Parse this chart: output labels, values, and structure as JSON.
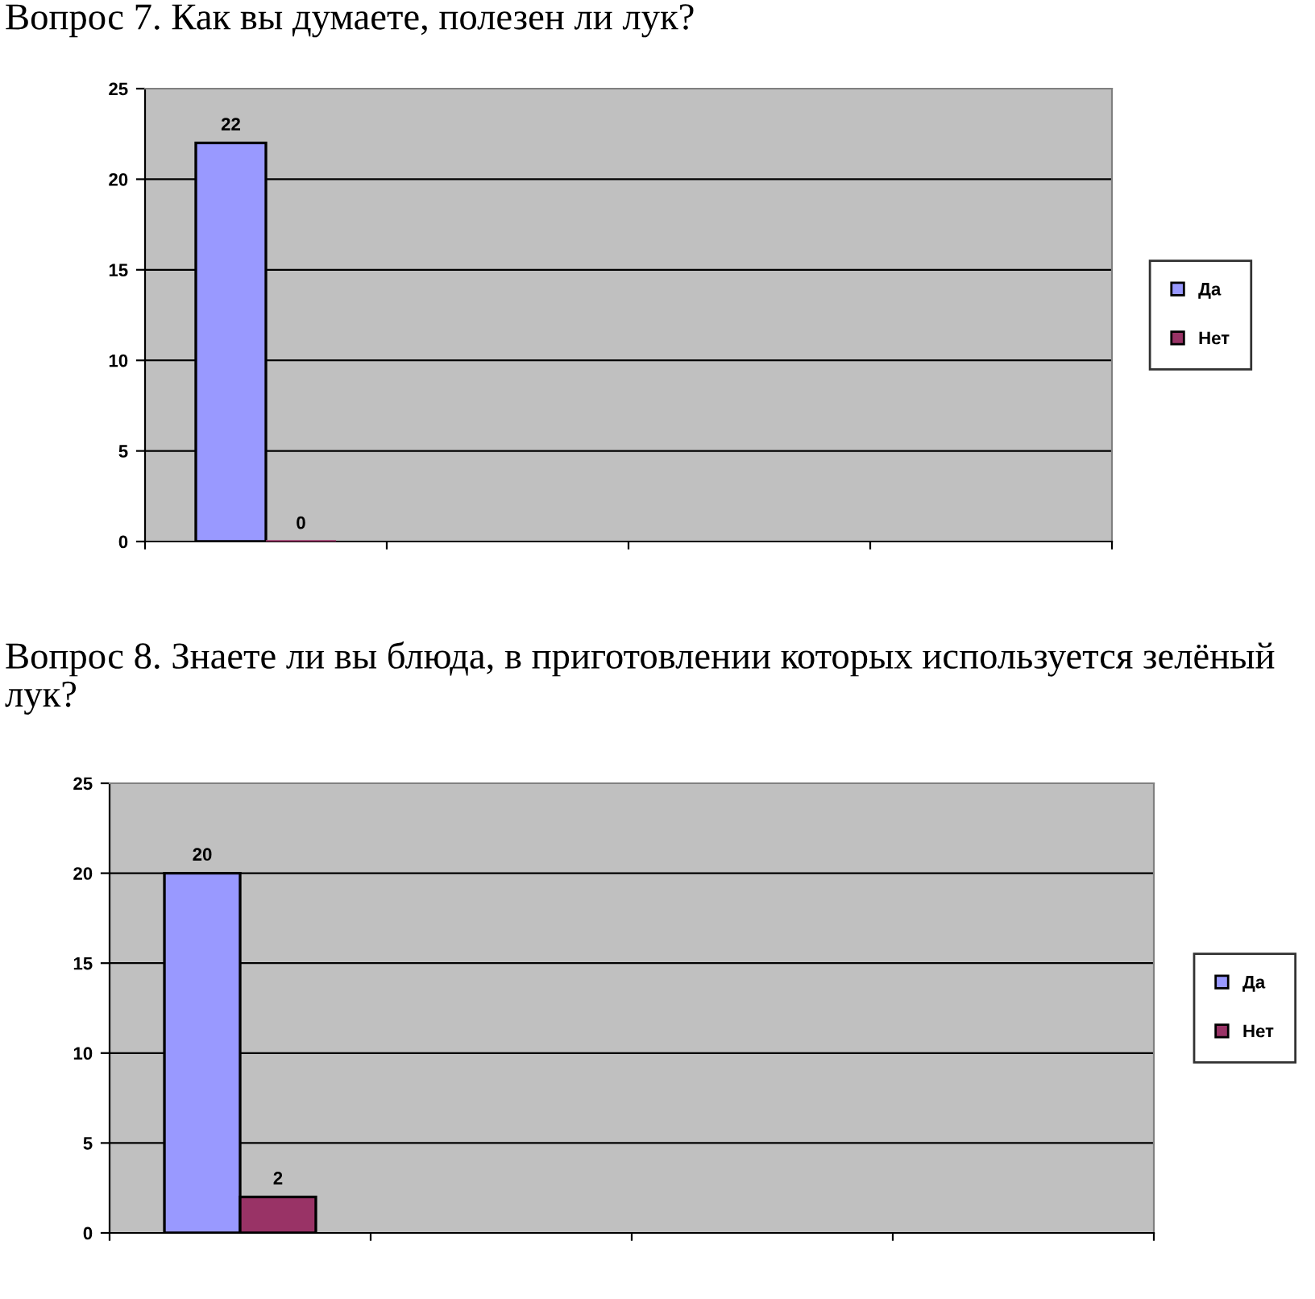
{
  "chart_data": [
    {
      "type": "bar",
      "title": "Вопрос 7. Как вы думаете, полезен ли лук?",
      "categories": [
        null,
        null,
        null,
        null
      ],
      "series": [
        {
          "name": "Да",
          "color": "#9999ff",
          "values": [
            22,
            null,
            null,
            null
          ]
        },
        {
          "name": "Нет",
          "color": "#993366",
          "values": [
            0,
            null,
            null,
            null
          ]
        }
      ],
      "ylim": [
        0,
        25
      ],
      "yticks": [
        0,
        5,
        10,
        15,
        20,
        25
      ],
      "grid": "y",
      "legend": "right",
      "data_labels": true
    },
    {
      "type": "bar",
      "title": "Вопрос 8. Знаете ли вы блюда, в приготовлении которых используется зелёный лук?",
      "categories": [
        null,
        null,
        null,
        null
      ],
      "series": [
        {
          "name": "Да",
          "color": "#9999ff",
          "values": [
            20,
            null,
            null,
            null
          ]
        },
        {
          "name": "Нет",
          "color": "#993366",
          "values": [
            2,
            null,
            null,
            null
          ]
        }
      ],
      "ylim": [
        0,
        25
      ],
      "yticks": [
        0,
        5,
        10,
        15,
        20,
        25
      ],
      "grid": "y",
      "legend": "right",
      "data_labels": true
    }
  ]
}
